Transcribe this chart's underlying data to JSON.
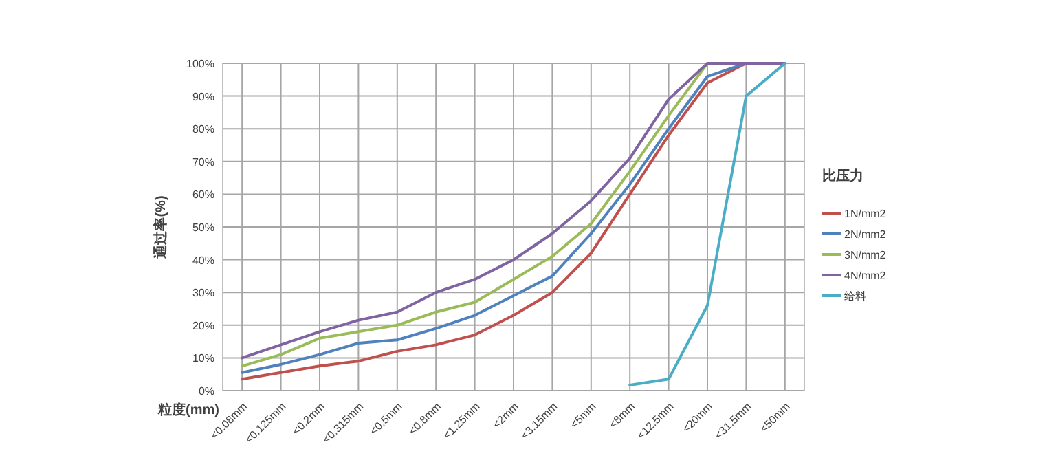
{
  "chart_data": {
    "type": "line",
    "xlabel": "粒度(mm)",
    "ylabel": "通过率(%)",
    "legend_title": "比压力",
    "legend": "right",
    "grid": true,
    "marker": "none",
    "line_style": "solid",
    "categories": [
      "<0.08mm",
      "<0.125mm",
      "<0.2mm",
      "<0.315mm",
      "<0.5mm",
      "<0.8mm",
      "<1.25mm",
      "<2mm",
      "<3.15mm",
      "<5mm",
      "<8mm",
      "<12.5mm",
      "<20mm",
      "<31.5mm",
      "<50mm"
    ],
    "ylim": [
      0,
      100
    ],
    "yticks": [
      {
        "value": 0,
        "label": "0%"
      },
      {
        "value": 10,
        "label": "10%"
      },
      {
        "value": 20,
        "label": "20%"
      },
      {
        "value": 30,
        "label": "30%"
      },
      {
        "value": 40,
        "label": "40%"
      },
      {
        "value": 50,
        "label": "50%"
      },
      {
        "value": 60,
        "label": "60%"
      },
      {
        "value": 70,
        "label": "70%"
      },
      {
        "value": 80,
        "label": "80%"
      },
      {
        "value": 90,
        "label": "90%"
      },
      {
        "value": 100,
        "label": "100%"
      }
    ],
    "series": [
      {
        "name": "1N/mm2",
        "color": "#c0504d",
        "values": [
          3.5,
          5.5,
          7.5,
          9,
          12,
          14,
          17,
          23,
          30,
          42,
          60,
          78,
          94,
          100,
          100
        ]
      },
      {
        "name": "2N/mm2",
        "color": "#4f81bd",
        "values": [
          5.5,
          8,
          11,
          14.5,
          15.5,
          19,
          23,
          29,
          35,
          48,
          63,
          80,
          96,
          100,
          100
        ]
      },
      {
        "name": "3N/mm2",
        "color": "#9bbb59",
        "values": [
          7.5,
          11,
          16,
          18,
          20,
          24,
          27,
          34,
          41,
          51,
          67,
          84,
          100,
          100,
          100
        ]
      },
      {
        "name": "4N/mm2",
        "color": "#8064a2",
        "values": [
          10,
          14,
          18,
          21.5,
          24,
          30,
          34,
          40,
          48,
          58,
          71,
          89,
          100,
          100,
          100
        ]
      },
      {
        "name": "给料",
        "color": "#4bacc6",
        "values": [
          null,
          null,
          null,
          null,
          null,
          null,
          null,
          null,
          null,
          null,
          1.7,
          3.5,
          26,
          90,
          100
        ]
      }
    ]
  }
}
